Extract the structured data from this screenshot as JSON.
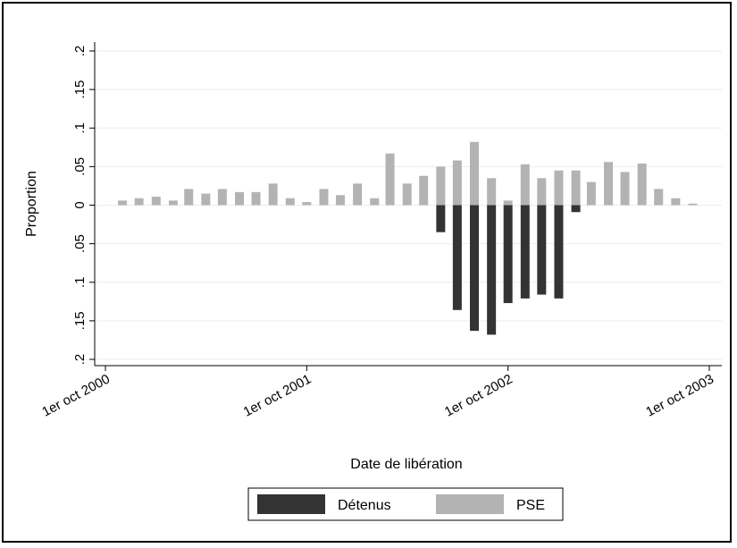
{
  "chart_data": {
    "type": "bar",
    "xlabel": "Date de libération",
    "ylabel": "Proportion",
    "xlim": [
      "2000-10-01",
      "2003-10-01"
    ],
    "ylim": [
      -0.2,
      0.2
    ],
    "x_ticks": [
      "2000-10-01",
      "2001-10-01",
      "2002-10-01",
      "2003-10-01"
    ],
    "x_tick_labels": [
      "1er oct 2000",
      "1er oct 2001",
      "1er oct 2002",
      "1er oct 2003"
    ],
    "y_ticks": [
      0.2,
      0.15,
      0.1,
      0.05,
      0,
      -0.05,
      -0.1,
      -0.15,
      -0.2
    ],
    "y_tick_labels": [
      ".2",
      ".15",
      ".1",
      ".05",
      "0",
      ".05",
      ".1",
      ".15",
      ".2"
    ],
    "grid": true,
    "legend_position": "bottom",
    "series": [
      {
        "name": "Détenus",
        "color": "#333333",
        "direction": "down",
        "points": [
          {
            "x": "2002-06-01",
            "y": 0.035
          },
          {
            "x": "2002-07-01",
            "y": 0.136
          },
          {
            "x": "2002-08-01",
            "y": 0.163
          },
          {
            "x": "2002-09-01",
            "y": 0.168
          },
          {
            "x": "2002-10-01",
            "y": 0.127
          },
          {
            "x": "2002-11-01",
            "y": 0.121
          },
          {
            "x": "2002-12-01",
            "y": 0.116
          },
          {
            "x": "2003-01-01",
            "y": 0.121
          },
          {
            "x": "2003-02-01",
            "y": 0.009
          }
        ]
      },
      {
        "name": "PSE",
        "color": "#b3b3b3",
        "direction": "up",
        "points": [
          {
            "x": "2000-11-01",
            "y": 0.006
          },
          {
            "x": "2000-12-01",
            "y": 0.009
          },
          {
            "x": "2001-01-01",
            "y": 0.011
          },
          {
            "x": "2001-02-01",
            "y": 0.006
          },
          {
            "x": "2001-03-01",
            "y": 0.021
          },
          {
            "x": "2001-04-01",
            "y": 0.015
          },
          {
            "x": "2001-05-01",
            "y": 0.021
          },
          {
            "x": "2001-06-01",
            "y": 0.017
          },
          {
            "x": "2001-07-01",
            "y": 0.017
          },
          {
            "x": "2001-08-01",
            "y": 0.028
          },
          {
            "x": "2001-09-01",
            "y": 0.009
          },
          {
            "x": "2001-10-01",
            "y": 0.004
          },
          {
            "x": "2001-11-01",
            "y": 0.021
          },
          {
            "x": "2001-12-01",
            "y": 0.013
          },
          {
            "x": "2002-01-01",
            "y": 0.028
          },
          {
            "x": "2002-02-01",
            "y": 0.009
          },
          {
            "x": "2002-03-01",
            "y": 0.067
          },
          {
            "x": "2002-04-01",
            "y": 0.028
          },
          {
            "x": "2002-05-01",
            "y": 0.038
          },
          {
            "x": "2002-06-01",
            "y": 0.05
          },
          {
            "x": "2002-07-01",
            "y": 0.058
          },
          {
            "x": "2002-08-01",
            "y": 0.082
          },
          {
            "x": "2002-09-01",
            "y": 0.035
          },
          {
            "x": "2002-10-01",
            "y": 0.006
          },
          {
            "x": "2002-11-01",
            "y": 0.053
          },
          {
            "x": "2002-12-01",
            "y": 0.035
          },
          {
            "x": "2003-01-01",
            "y": 0.045
          },
          {
            "x": "2003-02-01",
            "y": 0.045
          },
          {
            "x": "2003-03-01",
            "y": 0.03
          },
          {
            "x": "2003-04-01",
            "y": 0.056
          },
          {
            "x": "2003-05-01",
            "y": 0.043
          },
          {
            "x": "2003-06-01",
            "y": 0.054
          },
          {
            "x": "2003-07-01",
            "y": 0.021
          },
          {
            "x": "2003-08-01",
            "y": 0.009
          },
          {
            "x": "2003-09-01",
            "y": 0.002
          }
        ]
      }
    ]
  }
}
